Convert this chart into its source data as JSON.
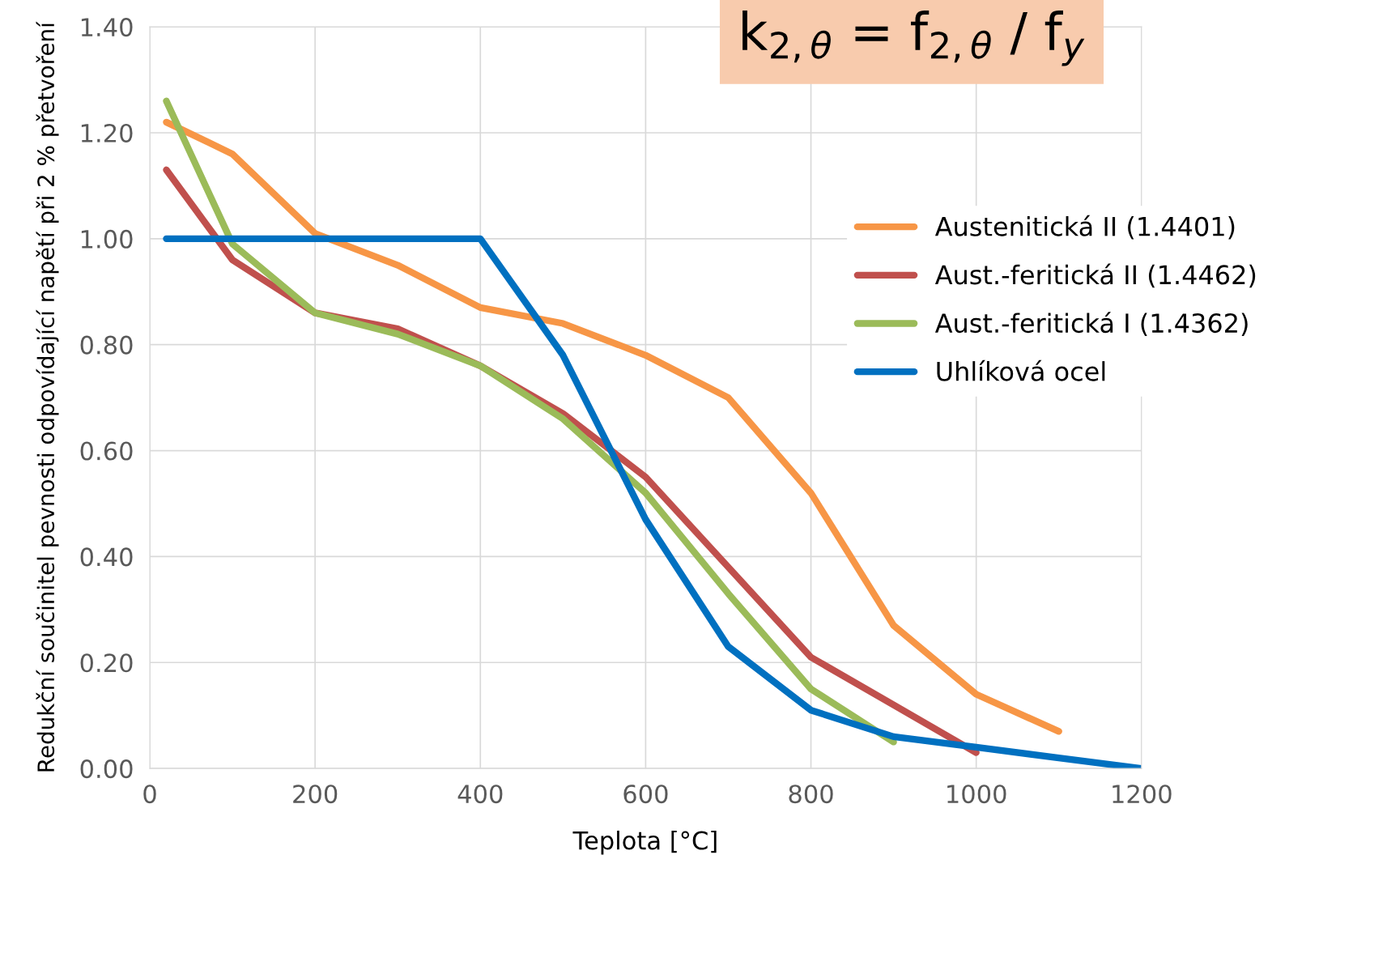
{
  "chart_data": {
    "type": "line",
    "title": "k$_{2,θ}$ = f$_{2,θ}$ / f$_{y}$",
    "xlabel": "Teplota [°C]",
    "ylabel": "Redukční součinitel pevnosti odpovídající napětí při 2 % přetvoření",
    "xlim": [
      0,
      1200
    ],
    "xticks": [
      0,
      200,
      400,
      600,
      800,
      1000,
      1200
    ],
    "ylim": [
      0,
      1.4
    ],
    "yticks": [
      {
        "value": 0,
        "label": "0.00"
      },
      {
        "value": 0.2,
        "label": "0.20"
      },
      {
        "value": 0.4,
        "label": "0.40"
      },
      {
        "value": 0.6,
        "label": "0.60"
      },
      {
        "value": 0.8,
        "label": "0.80"
      },
      {
        "value": 1.0,
        "label": "1.00"
      },
      {
        "value": 1.2,
        "label": "1.20"
      },
      {
        "value": 1.4,
        "label": "1.40"
      }
    ],
    "grid": true,
    "legend": "right",
    "marker": "none",
    "line_style": "solid",
    "series": [
      {
        "name": "Austenitická II (1.4401)",
        "color": "#f79646",
        "x": [
          20,
          100,
          200,
          300,
          400,
          500,
          600,
          700,
          800,
          900,
          1000,
          1100
        ],
        "values": [
          1.22,
          1.16,
          1.01,
          0.95,
          0.87,
          0.84,
          0.78,
          0.7,
          0.52,
          0.27,
          0.14,
          0.07
        ]
      },
      {
        "name": "Aust.-feritická II (1.4462)",
        "color": "#c0504d",
        "x": [
          20,
          100,
          200,
          300,
          400,
          500,
          600,
          700,
          800,
          900,
          1000
        ],
        "values": [
          1.13,
          0.96,
          0.86,
          0.83,
          0.76,
          0.67,
          0.55,
          0.38,
          0.21,
          0.12,
          0.03
        ]
      },
      {
        "name": "Aust.-feritická I (1.4362)",
        "color": "#9bbb59",
        "x": [
          20,
          100,
          200,
          300,
          400,
          500,
          600,
          700,
          800,
          900
        ],
        "values": [
          1.26,
          0.99,
          0.86,
          0.82,
          0.76,
          0.66,
          0.52,
          0.33,
          0.15,
          0.05
        ]
      },
      {
        "name": "Uhlíková ocel",
        "color": "#0070c0",
        "x": [
          20,
          400,
          500,
          600,
          700,
          800,
          900,
          1000,
          1100,
          1200
        ],
        "values": [
          1.0,
          1.0,
          0.78,
          0.47,
          0.23,
          0.11,
          0.06,
          0.04,
          0.02,
          0.0
        ]
      }
    ]
  }
}
